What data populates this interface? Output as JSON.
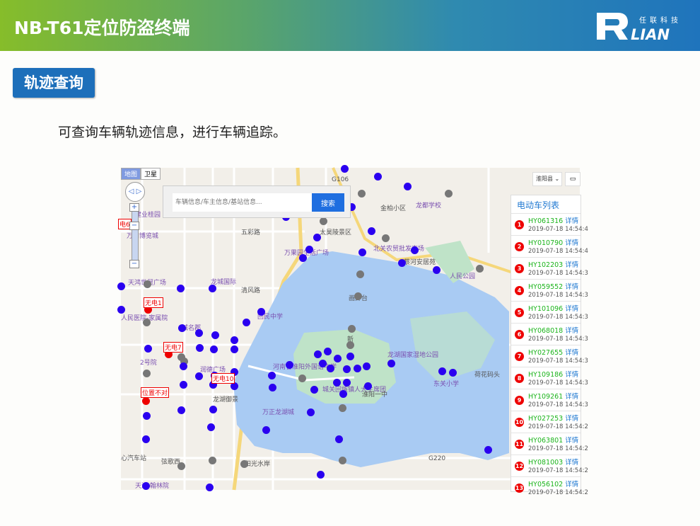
{
  "header": {
    "title": "NB-T61定位防盗终端",
    "logo_text": "RLIAN 任联科技"
  },
  "section": {
    "tag": "轨迹查询",
    "description": "可查询车辆轨迹信息，进行车辆追踪。"
  },
  "map": {
    "type_tabs": [
      "地图",
      "卫星"
    ],
    "search": {
      "placeholder": "车辆信息/车主信息/基站信息...",
      "button": "搜索"
    },
    "district": "淮阳县 ⌄",
    "labels": [
      "建业桂园",
      "万和博览城",
      "五彩路",
      "太昊陵景区",
      "万果园生活广场",
      "北关农贸批发市场",
      "金柏小区",
      "龙都学校",
      "蔡河安居苑",
      "人民公园",
      "天鸿世贸广场",
      "龙城国际",
      "清风路",
      "回民中学",
      "人民医院-家属院",
      "城名郡",
      "2号院",
      "润德广场",
      "河南省淮阳外国语中学",
      "城关回族镇人大主席团",
      "淮阳一中",
      "龙湖国家湿地公园",
      "东关小学",
      "荷花码头",
      "龙湖御景",
      "万正龙湖城",
      "弦歌西",
      "阳光水岸",
      "心汽车站",
      "天鸿·翰林院",
      "新",
      "G106",
      "G220",
      "画卦台"
    ],
    "alerts": [
      "无电1",
      "无电7",
      "无电10",
      "位置不对",
      "电6"
    ],
    "colors": {
      "normal": "#2a00f0",
      "offline": "#777777",
      "alarm": "#ee0000",
      "lake": "#a9cbf3",
      "park": "#bfe3c8"
    }
  },
  "vehicle_list": {
    "title": "电动车列表",
    "detail_label": "详情",
    "items": [
      {
        "n": "1",
        "id": "HY061316",
        "time": "2019-07-18 14:54:4"
      },
      {
        "n": "2",
        "id": "HY010790",
        "time": "2019-07-18 14:54:4"
      },
      {
        "n": "3",
        "id": "HY102203",
        "time": "2019-07-18 14:54:3"
      },
      {
        "n": "4",
        "id": "HY059552",
        "time": "2019-07-18 14:54:3"
      },
      {
        "n": "5",
        "id": "HY101096",
        "time": "2019-07-18 14:54:3"
      },
      {
        "n": "6",
        "id": "HY068018",
        "time": "2019-07-18 14:54:3"
      },
      {
        "n": "7",
        "id": "HY027655",
        "time": "2019-07-18 14:54:3"
      },
      {
        "n": "8",
        "id": "HY109186",
        "time": "2019-07-18 14:54:3"
      },
      {
        "n": "9",
        "id": "HY109261",
        "time": "2019-07-18 14:54:3"
      },
      {
        "n": "10",
        "id": "HY027253",
        "time": "2019-07-18 14:54:2"
      },
      {
        "n": "11",
        "id": "HY063801",
        "time": "2019-07-18 14:54:2"
      },
      {
        "n": "12",
        "id": "HY081003",
        "time": "2019-07-18 14:54:2"
      },
      {
        "n": "13",
        "id": "HY056102",
        "time": "2019-07-18 14:54:2"
      }
    ]
  }
}
